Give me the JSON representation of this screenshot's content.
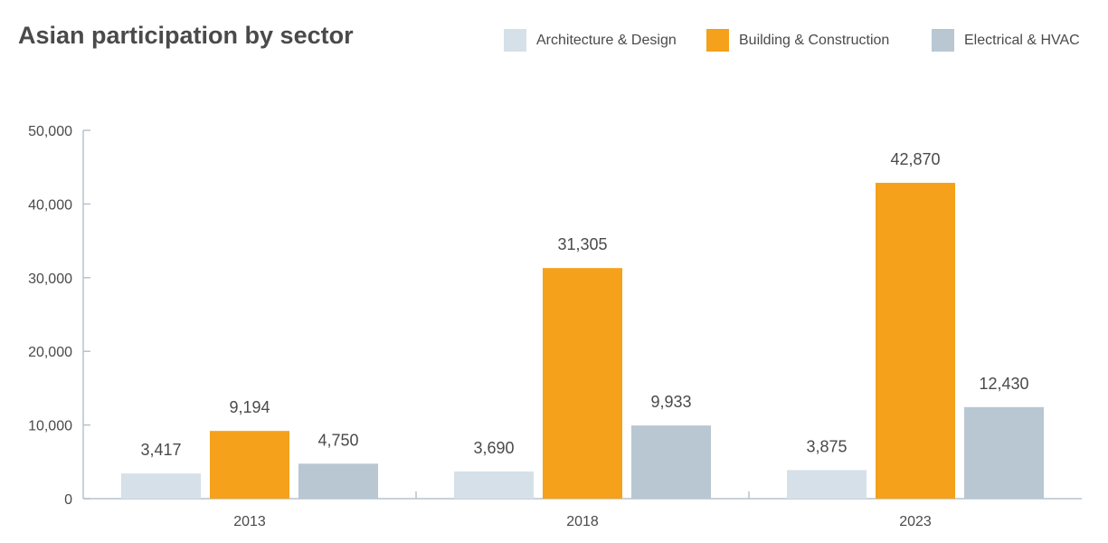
{
  "chart_data": {
    "type": "bar",
    "title": "Asian participation by sector",
    "categories": [
      "2013",
      "2018",
      "2023"
    ],
    "series": [
      {
        "name": "Architecture & Design",
        "color": "#d6e0e8",
        "values": [
          3417,
          3690,
          3875
        ],
        "labels": [
          "3,417",
          "3,690",
          "3,875"
        ]
      },
      {
        "name": "Building & Construction",
        "color": "#f5a11c",
        "values": [
          9194,
          31305,
          42870
        ],
        "labels": [
          "9,194",
          "31,305",
          "42,870"
        ]
      },
      {
        "name": "Electrical & HVAC",
        "color": "#b8c7d2",
        "values": [
          4750,
          9933,
          12430
        ],
        "labels": [
          "4,750",
          "9,933",
          "12,430"
        ]
      }
    ],
    "yticks": [
      "0",
      "10,000",
      "20,000",
      "30,000",
      "40,000",
      "50,000"
    ],
    "ylim": [
      0,
      50000
    ],
    "xlabel": "",
    "ylabel": "",
    "grid": false,
    "legend_position": "top-right"
  }
}
